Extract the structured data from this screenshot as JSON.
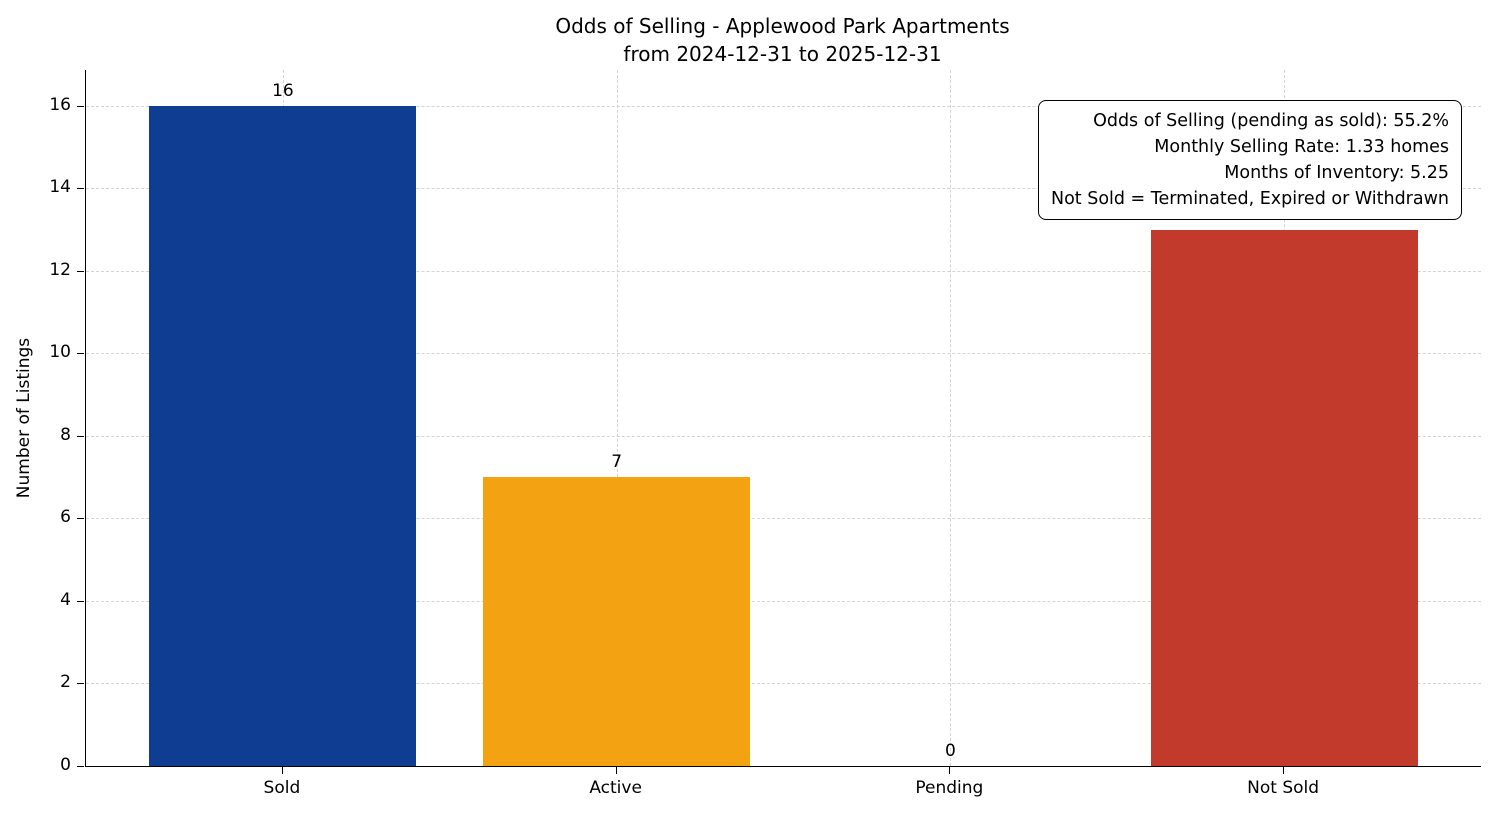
{
  "chart_data": {
    "type": "bar",
    "title": "Odds of Selling - Applewood Park Apartments\nfrom 2024-12-31 to 2025-12-31",
    "xlabel": "",
    "ylabel": "Number of Listings",
    "categories": [
      "Sold",
      "Active",
      "Pending",
      "Not Sold"
    ],
    "values": [
      16,
      7,
      0,
      13
    ],
    "bar_colors": [
      "#0e3d91",
      "#f3a211",
      "#8c8c8c",
      "#c23a2c"
    ],
    "ylim": [
      0,
      16.87
    ],
    "yticks": [
      0,
      2,
      4,
      6,
      8,
      10,
      12,
      14,
      16
    ],
    "grid": true,
    "legend": "none",
    "annotation_lines": [
      "Odds of Selling (pending as sold): 55.2%",
      "Monthly Selling Rate: 1.33 homes",
      "Months of Inventory: 5.25",
      "Not Sold = Terminated, Expired or Withdrawn"
    ]
  }
}
